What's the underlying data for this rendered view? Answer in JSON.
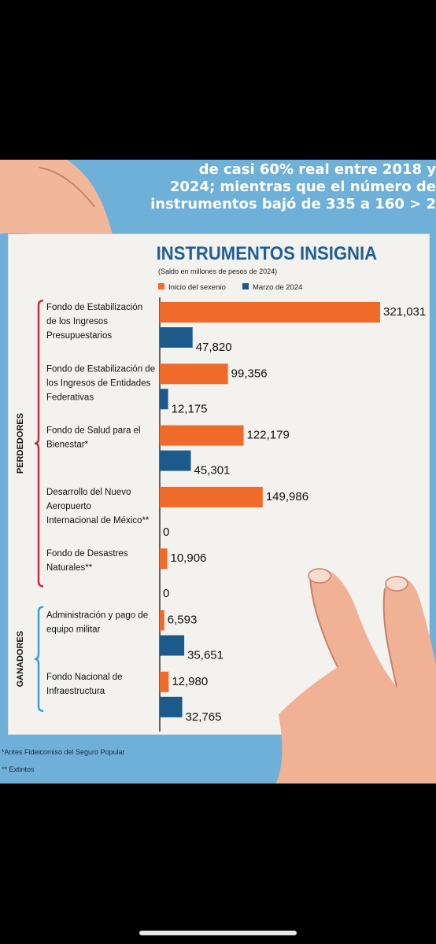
{
  "header": {
    "lines": [
      "de casi 60% real entre 2018 y",
      "2024; mientras que el número de",
      "instrumentos bajó de 335 a 160 > 2"
    ]
  },
  "colors": {
    "inicio": "#f06a2a",
    "marzo": "#1c5a8c",
    "brace": "#c2313c",
    "brace_win": "#3aa0d8",
    "title": "#1f5f95"
  },
  "chart_data": {
    "type": "bar",
    "orientation": "horizontal",
    "title": "INSTRUMENTOS INSIGNIA",
    "subtitle": "(Saldo en millones de pesos de 2024)",
    "legend": [
      "Inicio del sexenio",
      "Marzo de 2024"
    ],
    "legend_position": "top-left",
    "categories": [
      "Fondo de Estabilización de los Ingresos Presupuestarios",
      "Fondo de Estabilización de los Ingresos de Entidades Federativas",
      "Fondo de Salud para el Bienestar*",
      "Desarrollo del Nuevo Aeropuerto Internacional de México**",
      "Fondo de Desastres Naturales**",
      "Administración y pago de equipo militar",
      "Fondo Nacional de Infraestructura"
    ],
    "category_lines": [
      [
        "Fondo de Estabilización",
        "de los Ingresos",
        "Presupuestarios"
      ],
      [
        "Fondo de Estabilización de",
        "los Ingresos de Entidades",
        "Federativas"
      ],
      [
        "Fondo de Salud para el",
        "Bienestar*"
      ],
      [
        "Desarrollo del Nuevo",
        "Aeropuerto",
        "Internacional de México**"
      ],
      [
        "Fondo de Desastres",
        "Naturales**"
      ],
      [
        "Administración y pago de",
        "equipo militar"
      ],
      [
        "Fondo Nacional de",
        "Infraestructura"
      ]
    ],
    "series": [
      {
        "name": "Inicio del sexenio",
        "values": [
          321031,
          99356,
          122179,
          149986,
          10906,
          6593,
          12980
        ],
        "labels": [
          "321,031",
          "99,356",
          "122,179",
          "149,986",
          "10,906",
          "6,593",
          "12,980"
        ]
      },
      {
        "name": "Marzo de 2024",
        "values": [
          47820,
          12175,
          45301,
          0,
          0,
          35651,
          32765
        ],
        "labels": [
          "47,820",
          "12,175",
          "45,301",
          "0",
          "0",
          "35,651",
          "32,765"
        ]
      }
    ],
    "groups": [
      {
        "label": "PERDEDORES",
        "categories": [
          0,
          1,
          2,
          3,
          4
        ]
      },
      {
        "label": "GANADORES",
        "categories": [
          5,
          6
        ]
      }
    ]
  },
  "notes": [
    "*Antes Fideicomiso del Seguro Popular",
    "** Extintos"
  ]
}
